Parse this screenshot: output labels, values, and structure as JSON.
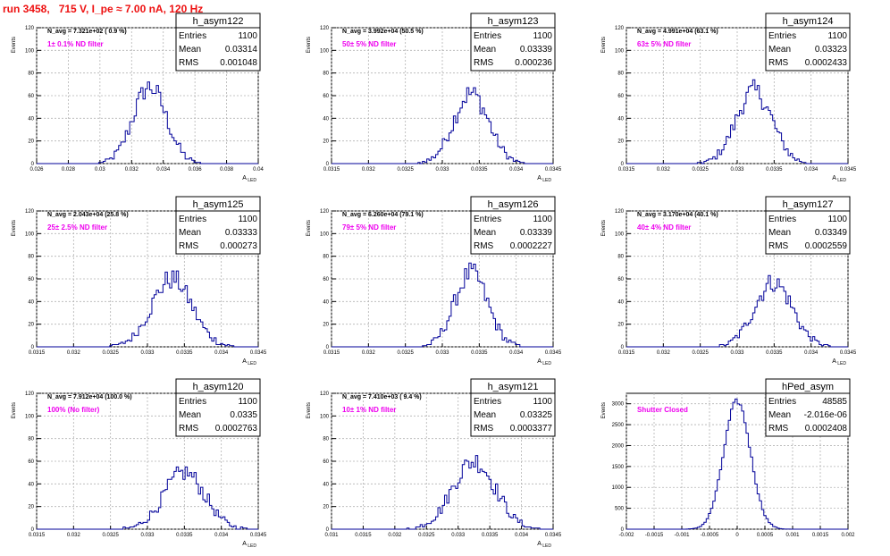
{
  "page": {
    "title": "run 3458,   715 V, I_pe ≈ 7.00 nA, 120 Hz",
    "colors": {
      "title": "#ee1111",
      "annotation": "#ee00ee",
      "histogram": "#000099",
      "grid": "#b3b3b3"
    }
  },
  "stats_labels": {
    "entries": "Entries",
    "mean": "Mean",
    "rms": "RMS"
  },
  "chart_data": [
    {
      "type": "histogram",
      "name": "h_asym122",
      "ylabel": "Events",
      "xlabel": "A_LED",
      "navg": "N_avg = 7.321e+02 ( 0.9 %)",
      "annotation": "1± 0.1% ND filter",
      "stats": {
        "entries": "1100",
        "mean": "0.03314",
        "rms": "0.001048"
      },
      "xlim": [
        0.026,
        0.04
      ],
      "ylim": [
        0,
        120
      ],
      "xticks": [
        0.026,
        0.028,
        0.03,
        0.032,
        0.034,
        0.036,
        0.038,
        0.04
      ],
      "xtick_labels": [
        "0.026",
        "0.028",
        "0.03",
        "0.032",
        "0.034",
        "0.036",
        "0.038",
        "0.04"
      ],
      "yticks": [
        0,
        20,
        40,
        60,
        80,
        100,
        120
      ],
      "mean": 0.03314,
      "rms": 0.001048,
      "peak": 68,
      "entries": 1100,
      "grid": true
    },
    {
      "type": "histogram",
      "name": "h_asym123",
      "ylabel": "Events",
      "xlabel": "A_LED",
      "navg": "N_avg = 3.992e+04 (50.5 %)",
      "annotation": "50± 5% ND filter",
      "stats": {
        "entries": "1100",
        "mean": "0.03339",
        "rms": "0.000236"
      },
      "xlim": [
        0.0315,
        0.0345
      ],
      "ylim": [
        0,
        120
      ],
      "xticks": [
        0.0315,
        0.032,
        0.0325,
        0.033,
        0.0335,
        0.034,
        0.0345
      ],
      "xtick_labels": [
        "0.0315",
        "0.032",
        "0.0325",
        "0.033",
        "0.0335",
        "0.034",
        "0.0345"
      ],
      "yticks": [
        0,
        20,
        40,
        60,
        80,
        100,
        120
      ],
      "mean": 0.03339,
      "rms": 0.000236,
      "peak": 62,
      "entries": 1100,
      "grid": true
    },
    {
      "type": "histogram",
      "name": "h_asym124",
      "ylabel": "Events",
      "xlabel": "A_LED",
      "navg": "N_avg = 4.991e+04 (63.1 %)",
      "annotation": "63± 5% ND filter",
      "stats": {
        "entries": "1100",
        "mean": "0.03323",
        "rms": "0.0002433"
      },
      "xlim": [
        0.0315,
        0.0345
      ],
      "ylim": [
        0,
        120
      ],
      "xticks": [
        0.0315,
        0.032,
        0.0325,
        0.033,
        0.0335,
        0.034,
        0.0345
      ],
      "xtick_labels": [
        "0.0315",
        "0.032",
        "0.0325",
        "0.033",
        "0.0335",
        "0.034",
        "0.0345"
      ],
      "yticks": [
        0,
        20,
        40,
        60,
        80,
        100,
        120
      ],
      "mean": 0.03323,
      "rms": 0.0002433,
      "peak": 64,
      "entries": 1100,
      "grid": true
    },
    {
      "type": "histogram",
      "name": "h_asym125",
      "ylabel": "Events",
      "xlabel": "A_LED",
      "navg": "N_avg = 2.043e+04 (25.8 %)",
      "annotation": "25± 2.5% ND filter",
      "stats": {
        "entries": "1100",
        "mean": "0.03333",
        "rms": "0.000273"
      },
      "xlim": [
        0.0315,
        0.0345
      ],
      "ylim": [
        0,
        120
      ],
      "xticks": [
        0.0315,
        0.032,
        0.0325,
        0.033,
        0.0335,
        0.034,
        0.0345
      ],
      "xtick_labels": [
        "0.0315",
        "0.032",
        "0.0325",
        "0.033",
        "0.0335",
        "0.034",
        "0.0345"
      ],
      "yticks": [
        0,
        20,
        40,
        60,
        80,
        100,
        120
      ],
      "mean": 0.03333,
      "rms": 0.000273,
      "peak": 60,
      "entries": 1100,
      "grid": true
    },
    {
      "type": "histogram",
      "name": "h_asym126",
      "ylabel": "Events",
      "xlabel": "A_LED",
      "navg": "N_avg = 6.260e+04 (79.1 %)",
      "annotation": "79± 5% ND filter",
      "stats": {
        "entries": "1100",
        "mean": "0.03339",
        "rms": "0.0002227"
      },
      "xlim": [
        0.0315,
        0.0345
      ],
      "ylim": [
        0,
        120
      ],
      "xticks": [
        0.0315,
        0.032,
        0.0325,
        0.033,
        0.0335,
        0.034,
        0.0345
      ],
      "xtick_labels": [
        "0.0315",
        "0.032",
        "0.0325",
        "0.033",
        "0.0335",
        "0.034",
        "0.0345"
      ],
      "yticks": [
        0,
        20,
        40,
        60,
        80,
        100,
        120
      ],
      "mean": 0.03339,
      "rms": 0.0002227,
      "peak": 65,
      "entries": 1100,
      "grid": true
    },
    {
      "type": "histogram",
      "name": "h_asym127",
      "ylabel": "Events",
      "xlabel": "A_LED",
      "navg": "N_avg = 3.170e+04 (40.1 %)",
      "annotation": "40± 4% ND filter",
      "stats": {
        "entries": "1100",
        "mean": "0.03349",
        "rms": "0.0002559"
      },
      "xlim": [
        0.0315,
        0.0345
      ],
      "ylim": [
        0,
        120
      ],
      "xticks": [
        0.0315,
        0.032,
        0.0325,
        0.033,
        0.0335,
        0.034,
        0.0345
      ],
      "xtick_labels": [
        "0.0315",
        "0.032",
        "0.0325",
        "0.033",
        "0.0335",
        "0.034",
        "0.0345"
      ],
      "yticks": [
        0,
        20,
        40,
        60,
        80,
        100,
        120
      ],
      "mean": 0.03349,
      "rms": 0.0002559,
      "peak": 57,
      "entries": 1100,
      "grid": true
    },
    {
      "type": "histogram",
      "name": "h_asym120",
      "ylabel": "Events",
      "xlabel": "A_LED",
      "navg": "N_avg = 7.912e+04 (100.0 %)",
      "annotation": "100% (No filter)",
      "stats": {
        "entries": "1100",
        "mean": "0.0335",
        "rms": "0.0002763"
      },
      "xlim": [
        0.0315,
        0.0345
      ],
      "ylim": [
        0,
        120
      ],
      "xticks": [
        0.0315,
        0.032,
        0.0325,
        0.033,
        0.0335,
        0.034,
        0.0345
      ],
      "xtick_labels": [
        "0.0315",
        "0.032",
        "0.0325",
        "0.033",
        "0.0335",
        "0.034",
        "0.0345"
      ],
      "yticks": [
        0,
        20,
        40,
        60,
        80,
        100,
        120
      ],
      "mean": 0.0335,
      "rms": 0.0002763,
      "peak": 50,
      "entries": 1100,
      "grid": true
    },
    {
      "type": "histogram",
      "name": "h_asym121",
      "ylabel": "Events",
      "xlabel": "A_LED",
      "navg": "N_avg = 7.410e+03 ( 9.4 %)",
      "annotation": "10± 1% ND filter",
      "stats": {
        "entries": "1100",
        "mean": "0.03325",
        "rms": "0.0003377"
      },
      "xlim": [
        0.031,
        0.0345
      ],
      "ylim": [
        0,
        120
      ],
      "xticks": [
        0.031,
        0.0315,
        0.032,
        0.0325,
        0.033,
        0.0335,
        0.034,
        0.0345
      ],
      "xtick_labels": [
        "0.031",
        "0.0315",
        "0.032",
        "0.0325",
        "0.033",
        "0.0335",
        "0.034",
        "0.0345"
      ],
      "yticks": [
        0,
        20,
        40,
        60,
        80,
        100,
        120
      ],
      "mean": 0.03325,
      "rms": 0.0003377,
      "peak": 60,
      "entries": 1100,
      "grid": true
    },
    {
      "type": "histogram",
      "name": "hPed_asym",
      "ylabel": "Events",
      "xlabel": "",
      "navg": "",
      "annotation": "Shutter Closed",
      "stats": {
        "entries": "48585",
        "mean": "-2.016e-06",
        "rms": "0.0002408"
      },
      "xlim": [
        -0.002,
        0.002
      ],
      "ylim": [
        0,
        3250
      ],
      "xticks": [
        -0.002,
        -0.0015,
        -0.001,
        -0.0005,
        0,
        0.0005,
        0.001,
        0.0015,
        0.002
      ],
      "xtick_labels": [
        "-0.002",
        "-0.0015",
        "-0.001",
        "-0.0005",
        "0",
        "0.0005",
        "0.001",
        "0.0015",
        "0.002"
      ],
      "yticks": [
        0,
        500,
        1000,
        1500,
        2000,
        2500,
        3000
      ],
      "mean": -2.016e-06,
      "rms": 0.0002408,
      "peak": 3060,
      "entries": 48585,
      "grid": true
    }
  ]
}
